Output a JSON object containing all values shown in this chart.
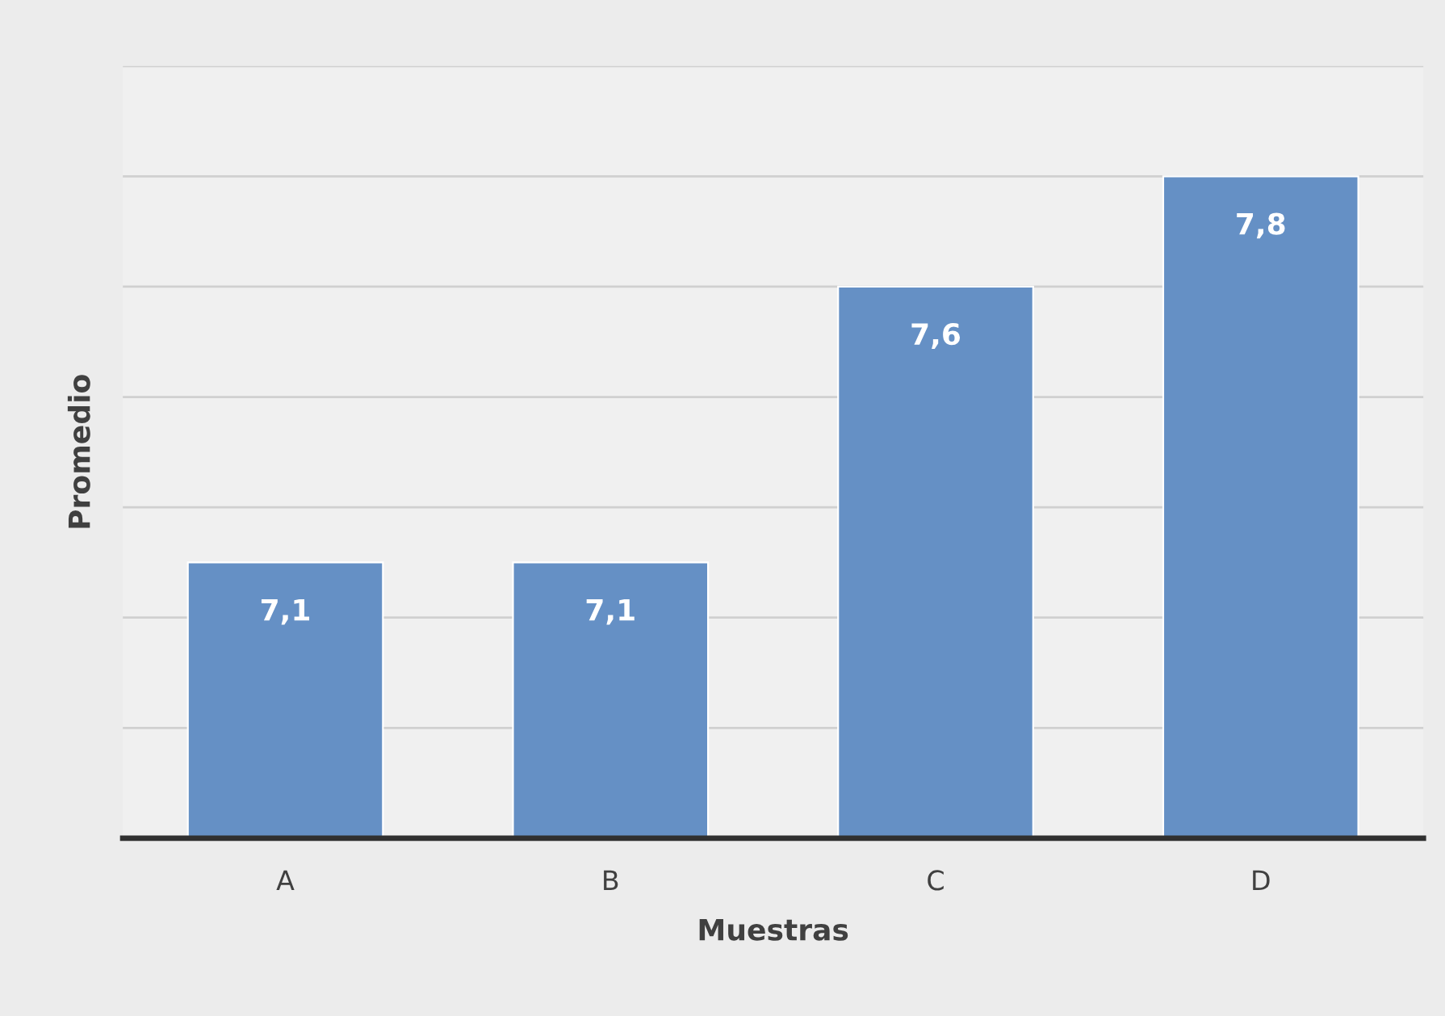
{
  "chart_data": {
    "type": "bar",
    "xlabel": "Muestras",
    "ylabel": "Promedio",
    "categories": [
      "A",
      "B",
      "C",
      "D"
    ],
    "values": [
      7.1,
      7.1,
      7.6,
      7.8
    ],
    "value_labels": [
      "7,1",
      "7,1",
      "7,6",
      "7,8"
    ],
    "color": "#6590c5",
    "ylim": [
      6.6,
      8.0
    ],
    "yticks": [
      {
        "value": 6.6,
        "label": null
      },
      {
        "value": 6.8,
        "label": null
      },
      {
        "value": 7.0,
        "label": null
      },
      {
        "value": 7.2,
        "label": null
      },
      {
        "value": 7.4,
        "label": null
      },
      {
        "value": 7.6,
        "label": null
      },
      {
        "value": 7.8,
        "label": null
      },
      {
        "value": 8.0,
        "label": null
      }
    ],
    "tick_labels": "x",
    "grid": "y",
    "legend": false
  }
}
